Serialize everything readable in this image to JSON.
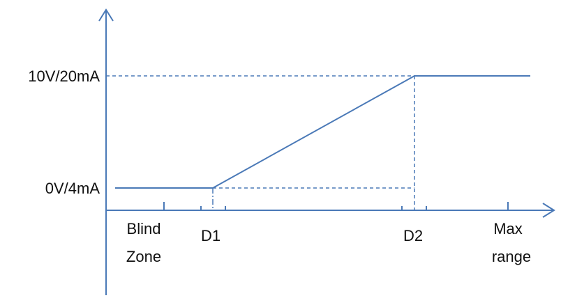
{
  "chart_data": {
    "type": "line",
    "title": "",
    "xlabel": "",
    "ylabel": "",
    "y_tick_labels": [
      "10V/20mA",
      "0V/4mA"
    ],
    "x_tick_labels": {
      "blind_zone": [
        "Blind",
        "Zone"
      ],
      "d1": "D1",
      "d2": "D2",
      "max_range": [
        "Max",
        "range"
      ]
    },
    "series": [
      {
        "points": [
          {
            "x": "start",
            "y": "0V/4mA"
          },
          {
            "x": "D1",
            "y": "0V/4mA"
          },
          {
            "x": "D2",
            "y": "10V/20mA"
          },
          {
            "x": "Max range",
            "y": "10V/20mA"
          }
        ]
      }
    ],
    "grid": false,
    "legend": "none"
  },
  "colors": {
    "line": "#4a79b7",
    "text": "#111111"
  }
}
